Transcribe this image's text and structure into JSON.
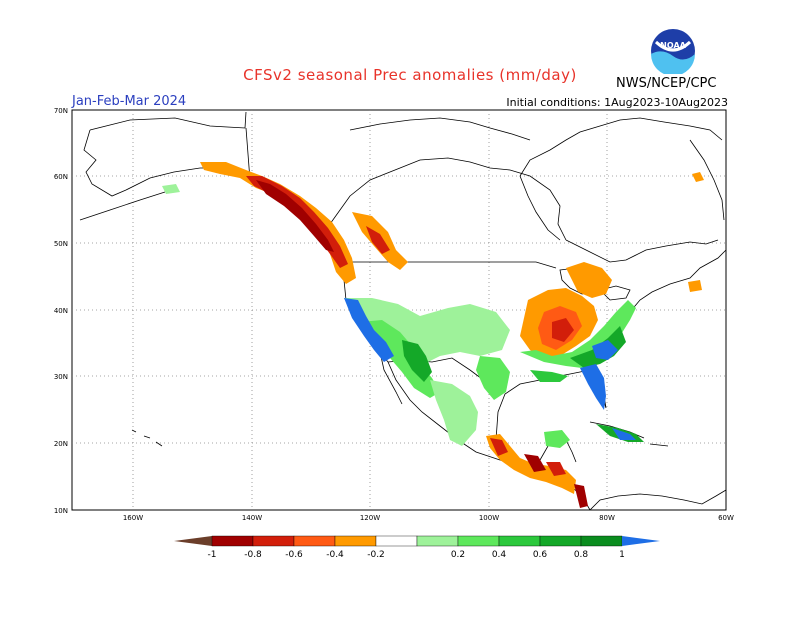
{
  "header": {
    "title": "CFSv2 seasonal Prec anomalies (mm/day)",
    "period": "Jan-Feb-Mar 2024",
    "initial_conditions": "Initial conditions: 1Aug2023-10Aug2023",
    "agency": "NWS/NCEP/CPC",
    "logo_text": "NOAA"
  },
  "map": {
    "region": "North America",
    "lat_labels": [
      "70N",
      "60N",
      "50N",
      "40N",
      "30N",
      "20N",
      "10N"
    ],
    "lon_labels": [
      "160W",
      "140W",
      "120W",
      "100W",
      "80W",
      "60W"
    ],
    "grid_style": "dotted",
    "anomaly_regions": [
      {
        "area": "Southeast Alaska / British Columbia coast",
        "category": "-1 to -0.8"
      },
      {
        "area": "Interior British Columbia / Alberta",
        "category": "-0.4 to -0.2"
      },
      {
        "area": "Ohio Valley / Tennessee",
        "category": "-0.6 to -0.4"
      },
      {
        "area": "Great Lakes",
        "category": "-0.4 to -0.2"
      },
      {
        "area": "Southern California",
        "category": "above 1"
      },
      {
        "area": "Southwest US",
        "category": "0.6 to 0.8"
      },
      {
        "area": "Florida",
        "category": "above 1"
      },
      {
        "area": "Gulf Coast",
        "category": "0.8 to 1"
      },
      {
        "area": "Western Mexico",
        "category": "0.4 to 0.8"
      },
      {
        "area": "Southern Mexico / Central America",
        "category": "-0.6 to -0.2"
      },
      {
        "area": "Cuba",
        "category": "0.8 to 1"
      }
    ]
  },
  "colorbar": {
    "labels": [
      "-1",
      "-0.8",
      "-0.6",
      "-0.4",
      "-0.2",
      "0.2",
      "0.4",
      "0.6",
      "0.8",
      "1"
    ],
    "colors": [
      "#6b3e2a",
      "#a00000",
      "#d21e0a",
      "#ff5a14",
      "#ff9a00",
      "#ffffff",
      "#9ef29a",
      "#5ee85c",
      "#2cc83c",
      "#14a828",
      "#0a8c1e",
      "#1e6ee6"
    ]
  }
}
